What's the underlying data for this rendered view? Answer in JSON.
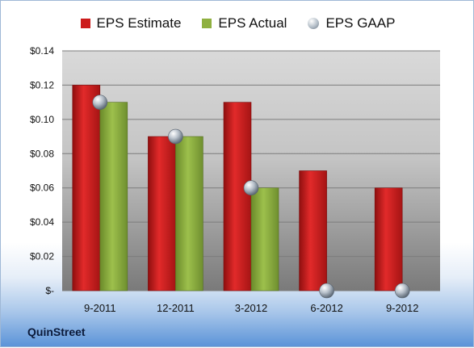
{
  "legend": {
    "estimate": "EPS Estimate",
    "actual": "EPS Actual",
    "gaap": "EPS GAAP"
  },
  "company": "QuinStreet",
  "colors": {
    "estimate": "#cc1b1b",
    "actual": "#8fb040",
    "gaap": "#b4bec8"
  },
  "chart_data": {
    "type": "bar",
    "categories": [
      "9-2011",
      "12-2011",
      "3-2012",
      "6-2012",
      "9-2012"
    ],
    "series": [
      {
        "name": "EPS Estimate",
        "values": [
          0.12,
          0.09,
          0.11,
          0.07,
          0.06
        ]
      },
      {
        "name": "EPS Actual",
        "values": [
          0.11,
          0.09,
          0.06,
          null,
          null
        ]
      },
      {
        "name": "EPS GAAP",
        "values": [
          0.11,
          0.09,
          0.06,
          0.0,
          0.0
        ]
      }
    ],
    "ylim": [
      0,
      0.14
    ],
    "yticks": [
      0,
      0.02,
      0.04,
      0.06,
      0.08,
      0.1,
      0.12,
      0.14
    ],
    "ytick_labels": [
      "$-",
      "$0.02",
      "$0.04",
      "$0.06",
      "$0.08",
      "$0.10",
      "$0.12",
      "$0.14"
    ],
    "grid": true,
    "legend_position": "top"
  }
}
